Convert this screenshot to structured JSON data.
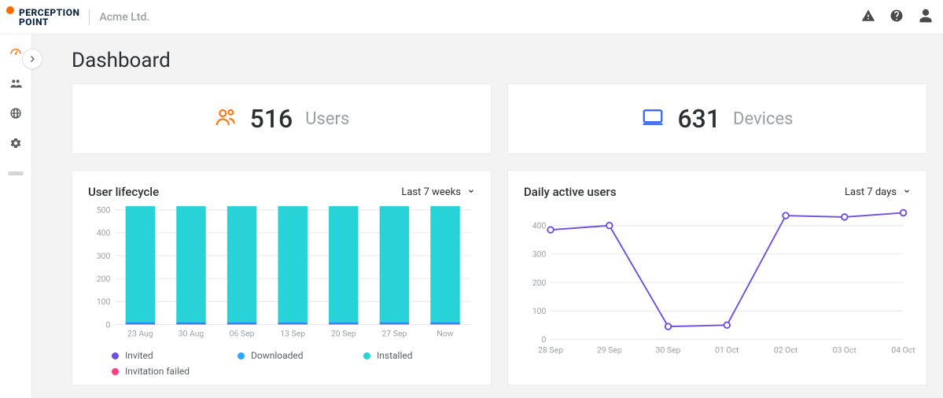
{
  "brand": {
    "line1": "PERCEPTION",
    "line2": "POINT",
    "accent": "#ff6a00"
  },
  "org_name": "Acme Ltd.",
  "sidebar": {
    "items": [
      {
        "name": "dashboard",
        "active": true
      },
      {
        "name": "users",
        "active": false
      },
      {
        "name": "web",
        "active": false
      },
      {
        "name": "settings",
        "active": false
      }
    ]
  },
  "page_title": "Dashboard",
  "metrics": {
    "users": {
      "value": "516",
      "label": "Users",
      "icon_color": "#ff7a1a"
    },
    "devices": {
      "value": "631",
      "label": "Devices",
      "icon_color": "#2f63ff"
    }
  },
  "lifecycle_chart": {
    "title": "User lifecycle",
    "range_label": "Last 7 weeks",
    "type": "stacked-bar",
    "categories": [
      "23 Aug",
      "30 Aug",
      "06 Sep",
      "13 Sep",
      "20 Sep",
      "27 Sep",
      "Now"
    ],
    "ylim": [
      0,
      500
    ],
    "ytick_step": 100,
    "yticks": [
      "0",
      "100",
      "200",
      "300",
      "400",
      "500"
    ],
    "bar_width": 0.58,
    "background_color": "#ffffff",
    "grid_color": "#e6e6e6",
    "axis_label_color": "#9aa0a6",
    "axis_label_fontsize": 11,
    "series": [
      {
        "name": "Invited",
        "color": "#6f4fe0",
        "values": [
          5,
          5,
          5,
          5,
          5,
          5,
          5
        ]
      },
      {
        "name": "Downloaded",
        "color": "#2aa8ff",
        "values": [
          8,
          8,
          8,
          8,
          8,
          8,
          8
        ]
      },
      {
        "name": "Installed",
        "color": "#27d3d6",
        "values": [
          503,
          503,
          503,
          503,
          503,
          503,
          503
        ]
      },
      {
        "name": "Invitation failed",
        "color": "#ff3b7b",
        "values": [
          0,
          0,
          0,
          0,
          0,
          0,
          0
        ]
      }
    ],
    "legend_order": [
      "Invited",
      "Downloaded",
      "Installed",
      "Invitation failed"
    ]
  },
  "dau_chart": {
    "title": "Daily active users",
    "range_label": "Last 7 days",
    "type": "line",
    "categories": [
      "28 Sep",
      "29 Sep",
      "30 Sep",
      "01 Oct",
      "02 Oct",
      "03 Oct",
      "04 Oct"
    ],
    "ylim": [
      0,
      450
    ],
    "ytick_step": 100,
    "yticks": [
      "0",
      "100",
      "200",
      "300",
      "400"
    ],
    "background_color": "#ffffff",
    "grid_color": "#e6e6e6",
    "axis_label_color": "#9aa0a6",
    "axis_label_fontsize": 11,
    "line_color": "#6f4fe0",
    "line_width": 2,
    "marker": {
      "shape": "circle",
      "size": 4,
      "stroke": "#6f4fe0",
      "fill": "#ffffff",
      "stroke_width": 2
    },
    "values": [
      385,
      400,
      45,
      50,
      435,
      430,
      445
    ]
  },
  "colors": {
    "page_bg": "#f3f3f4",
    "card_border": "#ececec",
    "text_muted": "#9aa0a6"
  }
}
